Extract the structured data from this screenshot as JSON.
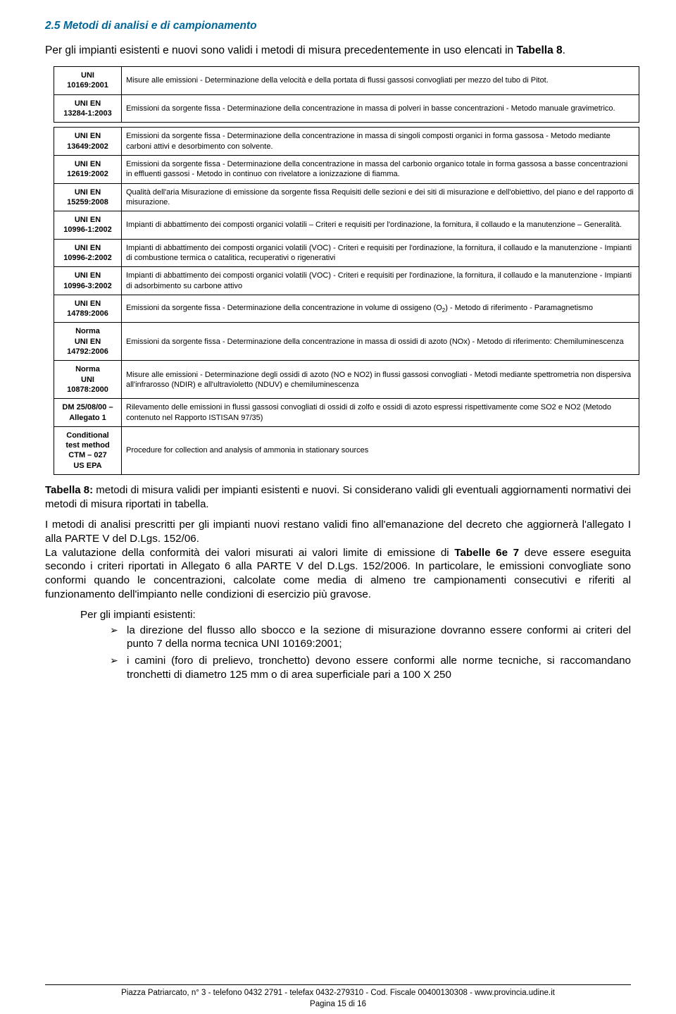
{
  "section_title": "2.5 Metodi di analisi e di campionamento",
  "intro_html": "Per gli impianti esistenti e nuovi sono validi i metodi di misura precedentemente in uso elencati in <b>Tabella 8</b>.",
  "table1": [
    {
      "code": "UNI\n10169:2001",
      "desc": "Misure alle emissioni - Determinazione della velocità e della portata di flussi gassosi convogliati per mezzo del tubo di Pitot."
    },
    {
      "code": "UNI EN\n13284-1:2003",
      "desc": "Emissioni da sorgente fissa - Determinazione della concentrazione in massa di polveri in basse concentrazioni - Metodo manuale gravimetrico."
    }
  ],
  "table2": [
    {
      "code": "UNI EN\n13649:2002",
      "desc": "Emissioni da sorgente fissa - Determinazione della concentrazione in massa di singoli composti organici in forma gassosa - Metodo mediante carboni attivi e desorbimento con solvente."
    },
    {
      "code": "UNI EN\n12619:2002",
      "desc": "Emissioni da sorgente fissa - Determinazione della concentrazione in massa del carbonio organico totale in forma gassosa a basse concentrazioni in effluenti gassosi - Metodo in continuo con rivelatore a ionizzazione di fiamma."
    },
    {
      "code": "UNI EN\n15259:2008",
      "desc": "Qualità dell'aria Misurazione di emissione da sorgente fissa\nRequisiti delle sezioni e dei siti di misurazione e dell'obiettivo, del piano e del rapporto di misurazione."
    },
    {
      "code": "UNI EN\n10996-1:2002",
      "desc": "Impianti di abbattimento dei composti organici volatili – Criteri e requisiti per l'ordinazione, la fornitura, il collaudo e la manutenzione – Generalità."
    },
    {
      "code": "UNI EN\n10996-2:2002",
      "desc": "Impianti di abbattimento dei composti organici volatili (VOC) - Criteri e requisiti per l'ordinazione, la fornitura, il collaudo e la manutenzione - Impianti di combustione termica o catalitica, recuperativi o rigenerativi"
    },
    {
      "code": "UNI EN\n10996-3:2002",
      "desc": "Impianti di abbattimento dei composti organici volatili (VOC) - Criteri e requisiti per l'ordinazione, la fornitura, il collaudo e la manutenzione - Impianti di adsorbimento su carbone attivo"
    },
    {
      "code": "UNI EN\n14789:2006",
      "desc_html": "Emissioni da sorgente fissa - Determinazione della concentrazione in volume di ossigeno (O<span class=\"subscript\">2</span>) - Metodo di riferimento - Paramagnetismo"
    },
    {
      "code": "Norma\nUNI EN\n14792:2006",
      "desc": "Emissioni da sorgente fissa - Determinazione della concentrazione in massa di ossidi di azoto (NOx) - Metodo di riferimento: Chemiluminescenza"
    },
    {
      "code": "Norma\nUNI\n10878:2000",
      "desc": "Misure alle emissioni - Determinazione degli ossidi di azoto (NO e NO2) in flussi gassosi convogliati - Metodi mediante spettrometria non dispersiva all'infrarosso (NDIR) e all'ultravioletto (NDUV) e chemiluminescenza"
    },
    {
      "code": "DM 25/08/00 –\nAllegato 1",
      "desc": "Rilevamento delle emissioni in flussi gassosi convogliati di ossidi di zolfo e ossidi di azoto espressi rispettivamente come SO2 e NO2 (Metodo contenuto nel Rapporto ISTISAN 97/35)"
    },
    {
      "code": "Conditional\ntest method\nCTM – 027\nUS EPA",
      "desc": "Procedure for collection and analysis of ammonia in stationary sources"
    }
  ],
  "caption_html": "<b>Tabella 8:</b> metodi di misura validi per impianti esistenti e nuovi. Si considerano validi gli eventuali aggiornamenti normativi dei metodi di misura riportati in tabella.",
  "para1_html": "I metodi di analisi prescritti per gli impianti nuovi restano validi fino all'emanazione del decreto che aggiornerà l'allegato I alla PARTE V del D.Lgs. 152/06.",
  "para2_html": "La valutazione della conformità dei valori misurati ai valori limite di emissione di <b>Tabelle 6e 7</b>  deve essere eseguita secondo i criteri riportati in Allegato 6 alla PARTE V del D.Lgs. 152/2006. In particolare, le emissioni convogliate sono conformi quando le concentrazioni, calcolate come media di almeno tre campionamenti consecutivi e riferiti al funzionamento dell'impianto nelle condizioni di esercizio più gravose.",
  "list_lead": "Per gli impianti esistenti:",
  "bullets": [
    "la direzione del flusso allo sbocco e la sezione di misurazione dovranno essere conformi ai criteri del punto 7 della norma tecnica UNI 10169:2001;",
    "i camini (foro di prelievo, tronchetto) devono essere conformi alle norme tecniche, si raccomandano tronchetti di diametro 125 mm o di area superficiale pari a 100 X 250"
  ],
  "footer_line1": "Piazza Patriarcato, n° 3 - telefono 0432 2791 - telefax 0432-279310 - Cod. Fiscale 00400130308 - www.provincia.udine.it",
  "footer_line2": "Pagina 15 di 16"
}
